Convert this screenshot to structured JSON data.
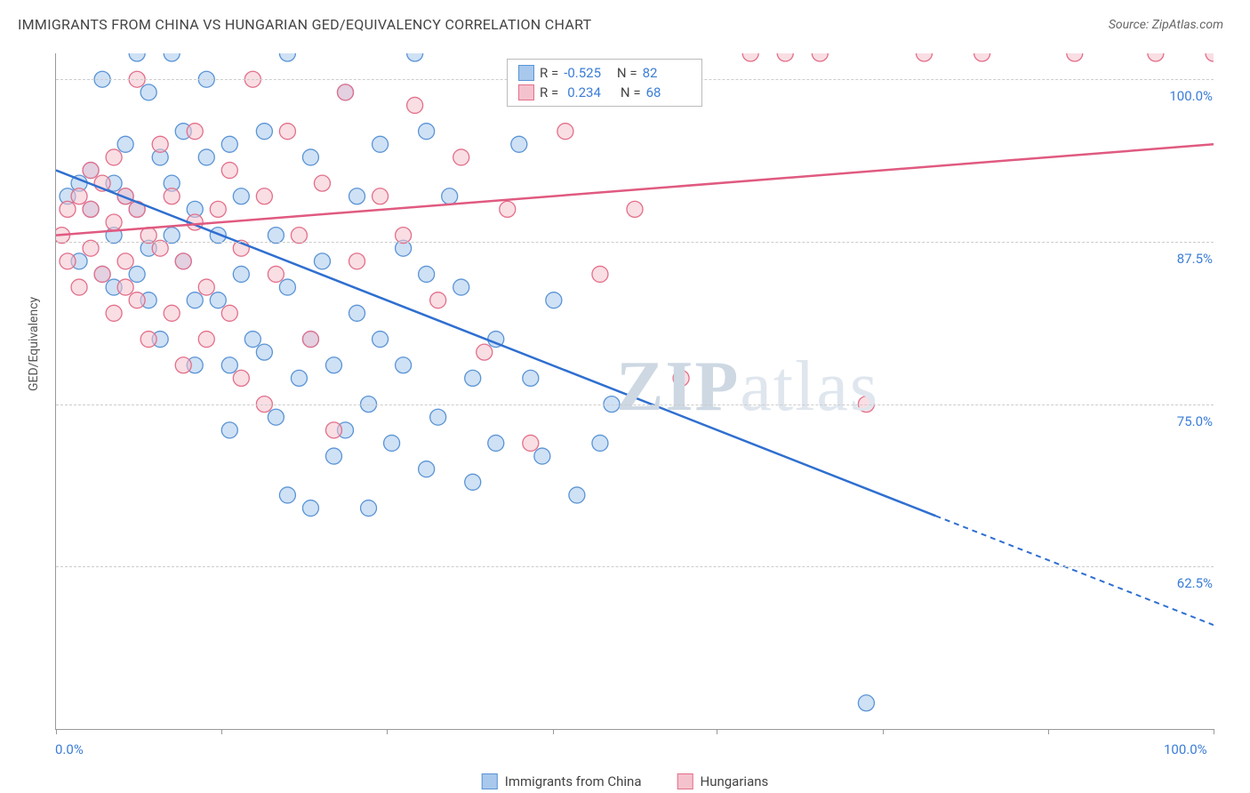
{
  "title": "IMMIGRANTS FROM CHINA VS HUNGARIAN GED/EQUIVALENCY CORRELATION CHART",
  "source": "Source: ZipAtlas.com",
  "y_axis_label": "GED/Equivalency",
  "watermark": {
    "part1": "ZIP",
    "part2": "atlas"
  },
  "chart": {
    "type": "scatter",
    "xlim": [
      0,
      100
    ],
    "ylim": [
      50,
      102
    ],
    "x_ticks": [
      0,
      14.3,
      28.6,
      42.9,
      57.1,
      71.4,
      85.7,
      100
    ],
    "x_tick_labels": {
      "0": "0.0%",
      "100": "100.0%"
    },
    "y_ticks": [
      62.5,
      75.0,
      87.5,
      100.0
    ],
    "y_tick_labels": [
      "62.5%",
      "75.0%",
      "87.5%",
      "100.0%"
    ],
    "background_color": "#ffffff",
    "grid_color": "#cccccc",
    "marker_radius": 9,
    "marker_opacity": 0.55,
    "series": [
      {
        "name": "Immigrants from China",
        "color_fill": "#a8c8ec",
        "color_stroke": "#5a94d6",
        "R": "-0.525",
        "N": "82",
        "trend": {
          "x1": 0,
          "y1": 93,
          "x2": 100,
          "y2": 58,
          "solid_until_x": 76
        },
        "points": [
          [
            1,
            91
          ],
          [
            2,
            92
          ],
          [
            2,
            86
          ],
          [
            3,
            93
          ],
          [
            3,
            90
          ],
          [
            4,
            100
          ],
          [
            4,
            85
          ],
          [
            5,
            92
          ],
          [
            5,
            88
          ],
          [
            5,
            84
          ],
          [
            6,
            95
          ],
          [
            6,
            91
          ],
          [
            7,
            102
          ],
          [
            7,
            90
          ],
          [
            7,
            85
          ],
          [
            8,
            99
          ],
          [
            8,
            87
          ],
          [
            8,
            83
          ],
          [
            9,
            94
          ],
          [
            9,
            80
          ],
          [
            10,
            102
          ],
          [
            10,
            92
          ],
          [
            10,
            88
          ],
          [
            11,
            96
          ],
          [
            11,
            86
          ],
          [
            12,
            90
          ],
          [
            12,
            83
          ],
          [
            12,
            78
          ],
          [
            13,
            100
          ],
          [
            13,
            94
          ],
          [
            14,
            88
          ],
          [
            14,
            83
          ],
          [
            15,
            95
          ],
          [
            15,
            78
          ],
          [
            15,
            73
          ],
          [
            16,
            91
          ],
          [
            16,
            85
          ],
          [
            17,
            80
          ],
          [
            18,
            96
          ],
          [
            18,
            79
          ],
          [
            19,
            88
          ],
          [
            19,
            74
          ],
          [
            20,
            102
          ],
          [
            20,
            84
          ],
          [
            20,
            68
          ],
          [
            21,
            77
          ],
          [
            22,
            94
          ],
          [
            22,
            80
          ],
          [
            22,
            67
          ],
          [
            23,
            86
          ],
          [
            24,
            78
          ],
          [
            24,
            71
          ],
          [
            25,
            99
          ],
          [
            25,
            73
          ],
          [
            26,
            91
          ],
          [
            26,
            82
          ],
          [
            27,
            75
          ],
          [
            27,
            67
          ],
          [
            28,
            95
          ],
          [
            28,
            80
          ],
          [
            29,
            72
          ],
          [
            30,
            87
          ],
          [
            30,
            78
          ],
          [
            31,
            102
          ],
          [
            32,
            96
          ],
          [
            32,
            85
          ],
          [
            32,
            70
          ],
          [
            33,
            74
          ],
          [
            34,
            91
          ],
          [
            35,
            84
          ],
          [
            36,
            77
          ],
          [
            36,
            69
          ],
          [
            38,
            80
          ],
          [
            38,
            72
          ],
          [
            40,
            95
          ],
          [
            41,
            77
          ],
          [
            42,
            71
          ],
          [
            43,
            83
          ],
          [
            45,
            68
          ],
          [
            47,
            72
          ],
          [
            70,
            52
          ],
          [
            48,
            75
          ]
        ]
      },
      {
        "name": "Hungarians",
        "color_fill": "#f4c2cd",
        "color_stroke": "#e36f8a",
        "R": "0.234",
        "N": "68",
        "trend": {
          "x1": 0,
          "y1": 88,
          "x2": 100,
          "y2": 95,
          "solid_until_x": 100
        },
        "points": [
          [
            0.5,
            88
          ],
          [
            1,
            90
          ],
          [
            1,
            86
          ],
          [
            2,
            91
          ],
          [
            2,
            84
          ],
          [
            3,
            93
          ],
          [
            3,
            90
          ],
          [
            3,
            87
          ],
          [
            4,
            92
          ],
          [
            4,
            85
          ],
          [
            5,
            94
          ],
          [
            5,
            89
          ],
          [
            5,
            82
          ],
          [
            6,
            91
          ],
          [
            6,
            86
          ],
          [
            6,
            84
          ],
          [
            7,
            100
          ],
          [
            7,
            90
          ],
          [
            7,
            83
          ],
          [
            8,
            88
          ],
          [
            8,
            80
          ],
          [
            9,
            95
          ],
          [
            9,
            87
          ],
          [
            10,
            91
          ],
          [
            10,
            82
          ],
          [
            11,
            86
          ],
          [
            11,
            78
          ],
          [
            12,
            96
          ],
          [
            12,
            89
          ],
          [
            13,
            84
          ],
          [
            13,
            80
          ],
          [
            14,
            90
          ],
          [
            15,
            93
          ],
          [
            15,
            82
          ],
          [
            16,
            87
          ],
          [
            16,
            77
          ],
          [
            17,
            100
          ],
          [
            18,
            91
          ],
          [
            18,
            75
          ],
          [
            19,
            85
          ],
          [
            20,
            96
          ],
          [
            21,
            88
          ],
          [
            22,
            80
          ],
          [
            23,
            92
          ],
          [
            24,
            73
          ],
          [
            25,
            99
          ],
          [
            26,
            86
          ],
          [
            28,
            91
          ],
          [
            30,
            88
          ],
          [
            31,
            98
          ],
          [
            33,
            83
          ],
          [
            35,
            94
          ],
          [
            37,
            79
          ],
          [
            39,
            90
          ],
          [
            41,
            72
          ],
          [
            44,
            96
          ],
          [
            47,
            85
          ],
          [
            50,
            90
          ],
          [
            54,
            77
          ],
          [
            60,
            102
          ],
          [
            63,
            102
          ],
          [
            66,
            102
          ],
          [
            70,
            75
          ],
          [
            75,
            102
          ],
          [
            80,
            102
          ],
          [
            88,
            102
          ],
          [
            95,
            102
          ],
          [
            100,
            102
          ]
        ]
      }
    ]
  },
  "colors": {
    "text": "#444444",
    "axis_value": "#3b7dd8",
    "blue_line": "#2f6fd0",
    "pink_line": "#e05a80"
  }
}
